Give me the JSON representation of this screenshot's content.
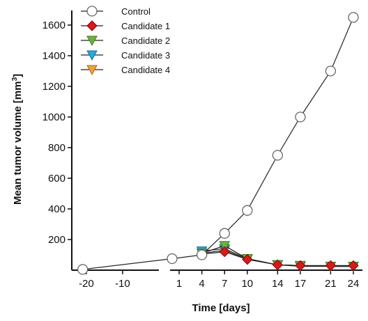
{
  "chart_data": {
    "type": "line",
    "title": "",
    "xlabel": "Time [days]",
    "ylabel": "Mean tumor volume [mm",
    "ylabel_superscript": "3",
    "ylabel_close": "]",
    "ylim": [
      0,
      1650
    ],
    "grid": false,
    "x_axis_broken": true,
    "legend_position": "top-left",
    "y_ticks": [
      200,
      400,
      600,
      800,
      1000,
      1200,
      1400,
      1600
    ],
    "x_ticks": [
      -20,
      -10,
      1,
      4,
      7,
      10,
      14,
      17,
      21,
      24
    ],
    "series": [
      {
        "name": "Control",
        "marker": "circle",
        "color": "#ffffff",
        "stroke": "#666666",
        "x": [
          -21,
          0,
          4,
          7,
          10,
          14,
          17,
          21,
          24
        ],
        "values": [
          5,
          75,
          100,
          240,
          390,
          750,
          1000,
          1300,
          1650
        ]
      },
      {
        "name": "Candidate 1",
        "marker": "diamond",
        "color": "#d7191c",
        "stroke": "#8b0000",
        "x": [
          4,
          7,
          10,
          14,
          17,
          21,
          24
        ],
        "values": [
          105,
          120,
          70,
          35,
          30,
          30,
          30
        ]
      },
      {
        "name": "Candidate 2",
        "marker": "triangle-down",
        "color": "#6cb33e",
        "stroke": "#3d7a1c",
        "x": [
          4,
          7,
          10,
          14,
          17,
          21,
          24
        ],
        "values": [
          110,
          160,
          75,
          35,
          30,
          25,
          25
        ]
      },
      {
        "name": "Candidate 3",
        "marker": "triangle-down",
        "color": "#29a8e0",
        "stroke": "#1a6f96",
        "x": [
          4,
          7,
          10,
          14,
          17,
          21,
          24
        ],
        "values": [
          125,
          140,
          75,
          35,
          25,
          25,
          25
        ]
      },
      {
        "name": "Candidate 4",
        "marker": "triangle-down",
        "color": "#f0a040",
        "stroke": "#b06a10",
        "x": [
          4,
          7,
          10,
          14,
          17,
          21,
          24
        ],
        "values": [
          110,
          130,
          70,
          35,
          30,
          25,
          25
        ]
      }
    ]
  }
}
